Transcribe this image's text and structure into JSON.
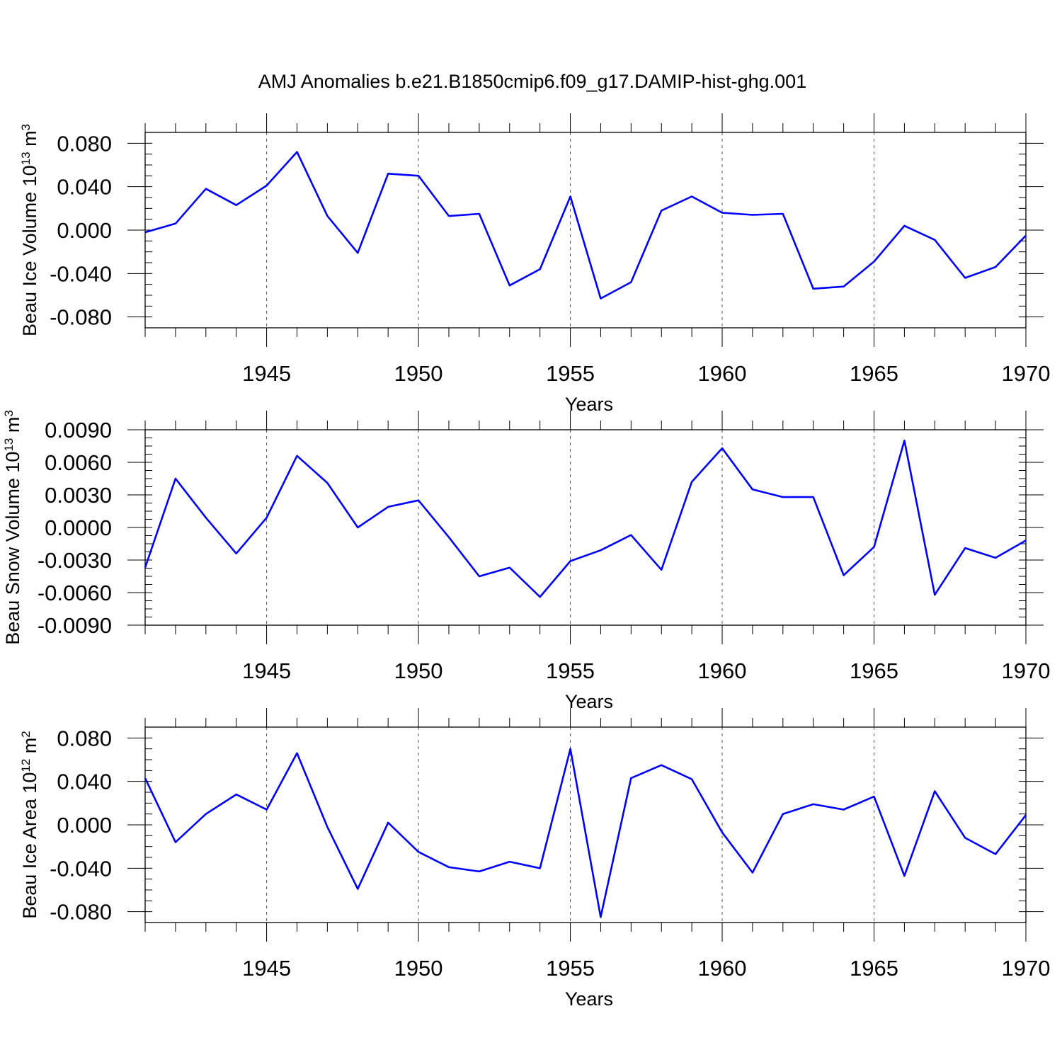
{
  "title": "AMJ Anomalies b.e21.B1850cmip6.f09_g17.DAMIP-hist-ghg.001",
  "line_color": "#0000ff",
  "chart_data": [
    {
      "type": "line",
      "ylabel_main": "Beau Ice Volume 10",
      "ylabel_sup": "13",
      "ylabel_unit": " m",
      "ylabel_unit_sup": "3",
      "xlabel": "Years",
      "xlim": [
        1941,
        1970
      ],
      "ylim": [
        -0.09,
        0.09
      ],
      "x_ticks": [
        1945,
        1950,
        1955,
        1960,
        1965,
        1970
      ],
      "x_tick_labels": [
        "1945",
        "1950",
        "1955",
        "1960",
        "1965",
        "1970"
      ],
      "y_ticks": [
        -0.08,
        -0.04,
        0.0,
        0.04,
        0.08
      ],
      "y_tick_labels": [
        "-0.080",
        "-0.040",
        "0.000",
        "0.040",
        "0.080"
      ],
      "x": [
        1941,
        1942,
        1943,
        1944,
        1945,
        1946,
        1947,
        1948,
        1949,
        1950,
        1951,
        1952,
        1953,
        1954,
        1955,
        1956,
        1957,
        1958,
        1959,
        1960,
        1961,
        1962,
        1963,
        1964,
        1965,
        1966,
        1967,
        1968,
        1969,
        1970
      ],
      "values": [
        -0.002,
        0.006,
        0.038,
        0.023,
        0.041,
        0.072,
        0.013,
        -0.021,
        0.052,
        0.05,
        0.013,
        0.015,
        -0.051,
        -0.036,
        0.031,
        -0.063,
        -0.048,
        0.018,
        0.031,
        0.016,
        0.014,
        0.015,
        -0.054,
        -0.052,
        -0.029,
        0.004,
        -0.009,
        -0.044,
        -0.034,
        -0.005
      ]
    },
    {
      "type": "line",
      "ylabel_main": "Beau Snow Volume 10",
      "ylabel_sup": "13",
      "ylabel_unit": " m",
      "ylabel_unit_sup": "3",
      "xlabel": "Years",
      "xlim": [
        1941,
        1970
      ],
      "ylim": [
        -0.009,
        0.009
      ],
      "x_ticks": [
        1945,
        1950,
        1955,
        1960,
        1965,
        1970
      ],
      "x_tick_labels": [
        "1945",
        "1950",
        "1955",
        "1960",
        "1965",
        "1970"
      ],
      "y_ticks": [
        -0.009,
        -0.006,
        -0.003,
        0.0,
        0.003,
        0.006,
        0.009
      ],
      "y_tick_labels": [
        "-0.0090",
        "-0.0060",
        "-0.0030",
        "0.0000",
        "0.0030",
        "0.0060",
        "0.0090"
      ],
      "x": [
        1941,
        1942,
        1943,
        1944,
        1945,
        1946,
        1947,
        1948,
        1949,
        1950,
        1951,
        1952,
        1953,
        1954,
        1955,
        1956,
        1957,
        1958,
        1959,
        1960,
        1961,
        1962,
        1963,
        1964,
        1965,
        1966,
        1967,
        1968,
        1969,
        1970
      ],
      "values": [
        -0.0037,
        0.0045,
        0.0009,
        -0.0024,
        0.0009,
        0.0066,
        0.0041,
        0.0,
        0.0019,
        0.0025,
        -0.0009,
        -0.0045,
        -0.0037,
        -0.0064,
        -0.0031,
        -0.0021,
        -0.0007,
        -0.0039,
        0.0042,
        0.0073,
        0.0035,
        0.0028,
        0.0028,
        -0.0044,
        -0.0018,
        0.008,
        -0.0062,
        -0.0019,
        -0.0028,
        -0.0012
      ]
    },
    {
      "type": "line",
      "ylabel_main": "Beau Ice Area 10",
      "ylabel_sup": "12",
      "ylabel_unit": " m",
      "ylabel_unit_sup": "2",
      "xlabel": "Years",
      "xlim": [
        1941,
        1970
      ],
      "ylim": [
        -0.09,
        0.09
      ],
      "x_ticks": [
        1945,
        1950,
        1955,
        1960,
        1965,
        1970
      ],
      "x_tick_labels": [
        "1945",
        "1950",
        "1955",
        "1960",
        "1965",
        "1970"
      ],
      "y_ticks": [
        -0.08,
        -0.04,
        0.0,
        0.04,
        0.08
      ],
      "y_tick_labels": [
        "-0.080",
        "-0.040",
        "0.000",
        "0.040",
        "0.080"
      ],
      "x": [
        1941,
        1942,
        1943,
        1944,
        1945,
        1946,
        1947,
        1948,
        1949,
        1950,
        1951,
        1952,
        1953,
        1954,
        1955,
        1956,
        1957,
        1958,
        1959,
        1960,
        1961,
        1962,
        1963,
        1964,
        1965,
        1966,
        1967,
        1968,
        1969,
        1970
      ],
      "values": [
        0.043,
        -0.016,
        0.01,
        0.028,
        0.014,
        0.066,
        -0.002,
        -0.059,
        0.002,
        -0.025,
        -0.039,
        -0.043,
        -0.034,
        -0.04,
        0.07,
        -0.085,
        0.043,
        0.055,
        0.042,
        -0.007,
        -0.044,
        0.01,
        0.019,
        0.014,
        0.026,
        -0.047,
        0.031,
        -0.012,
        -0.027,
        0.009
      ]
    }
  ]
}
